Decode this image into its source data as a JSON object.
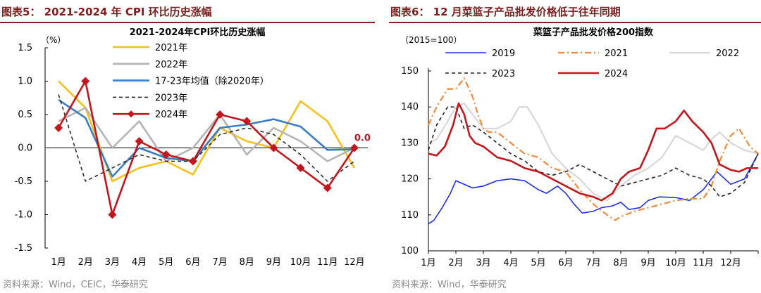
{
  "left": {
    "figure_title": "图表5：  2021-2024 年 CPI 环比历史涨幅",
    "source": "资料来源：Wind，CEIC，华泰研究"
  },
  "right": {
    "figure_title": "图表6：  12 月菜篮子产品批发价格低于往年同期",
    "source": "资料来源：Wind，华泰研究"
  },
  "chart_data": [
    {
      "type": "line",
      "title": "2021-2024年CPI环比历史涨幅",
      "unit_label": "（%）",
      "xlabel": "",
      "ylabel": "",
      "ylim": [
        -1.5,
        1.5
      ],
      "yticks": [
        "1.5",
        "1.0",
        "0.5",
        "0.0",
        "-0.5",
        "-1.0",
        "-1.5"
      ],
      "categories": [
        "1月",
        "2月",
        "3月",
        "4月",
        "5月",
        "6月",
        "7月",
        "8月",
        "9月",
        "10月",
        "11月",
        "12月"
      ],
      "grid": false,
      "legend_position": "top-center",
      "series": [
        {
          "name": "2021年",
          "color": "#f5c018",
          "style": "solid",
          "values": [
            1.0,
            0.6,
            -0.5,
            -0.3,
            -0.2,
            -0.4,
            0.3,
            0.1,
            0.0,
            0.7,
            0.4,
            -0.3
          ]
        },
        {
          "name": "2022年",
          "color": "#b4b4b4",
          "style": "solid",
          "values": [
            0.4,
            0.6,
            0.0,
            0.4,
            -0.2,
            0.0,
            0.5,
            -0.1,
            0.3,
            0.1,
            -0.2,
            0.0
          ]
        },
        {
          "name": "17-23年均值（除2020年）",
          "color": "#3a7ebf",
          "style": "solid",
          "values": [
            0.72,
            0.45,
            -0.43,
            0.0,
            -0.15,
            -0.2,
            0.3,
            0.35,
            0.43,
            0.32,
            -0.03,
            -0.02
          ]
        },
        {
          "name": "2023年",
          "color": "#222222",
          "style": "dashed",
          "values": [
            0.8,
            -0.5,
            -0.3,
            -0.1,
            -0.2,
            -0.2,
            0.2,
            0.3,
            0.2,
            -0.1,
            -0.5,
            -0.2
          ]
        },
        {
          "name": "2024年",
          "color": "#c0161d",
          "style": "solid-diamond",
          "values": [
            0.3,
            1.0,
            -1.0,
            0.1,
            -0.1,
            -0.2,
            0.5,
            0.4,
            0.0,
            -0.3,
            -0.6,
            0.0
          ]
        }
      ],
      "annotations": [
        {
          "text": "0.0",
          "category": "12月",
          "value": 0.0,
          "color": "#c0161d"
        }
      ]
    },
    {
      "type": "line",
      "title": "菜篮子产品批发价格200指数",
      "unit_label": "（2015=100）",
      "xlabel": "",
      "ylabel": "",
      "ylim": [
        100,
        150
      ],
      "yticks": [
        "150",
        "140",
        "130",
        "120",
        "110",
        "100"
      ],
      "categories": [
        "1月",
        "2月",
        "3月",
        "4月",
        "5月",
        "6月",
        "7月",
        "8月",
        "9月",
        "10月",
        "11月",
        "12月"
      ],
      "grid": false,
      "legend_position": "top",
      "series": [
        {
          "name": "2019",
          "color": "#1f2fe0",
          "style": "solid",
          "x": [
            0,
            0.2,
            0.5,
            0.8,
            1.0,
            1.3,
            1.6,
            2.0,
            2.5,
            3.0,
            3.5,
            4.0,
            4.3,
            4.7,
            5.0,
            5.3,
            5.6,
            6.0,
            6.3,
            6.7,
            7.0,
            7.3,
            7.7,
            8.0,
            8.4,
            9.0,
            9.5,
            10.0,
            10.5,
            11.0,
            11.5,
            12.0
          ],
          "y": [
            107.5,
            108.5,
            112,
            116,
            119.5,
            118.5,
            117.5,
            118,
            119.5,
            120,
            119.5,
            117,
            116,
            118,
            116,
            113,
            110.5,
            111,
            112,
            112.5,
            113.5,
            111.5,
            112,
            114,
            115,
            114.8,
            114,
            117,
            122,
            118.5,
            120,
            127
          ]
        },
        {
          "name": "2021",
          "color": "#f28a3c",
          "style": "dashdot",
          "x": [
            0,
            0.3,
            0.7,
            1.0,
            1.3,
            1.6,
            1.8,
            2.0,
            2.2,
            2.5,
            3.0,
            3.5,
            4.0,
            4.5,
            5.0,
            5.5,
            6.0,
            6.5,
            6.8,
            7.0,
            7.5,
            8.0,
            8.5,
            9.0,
            9.5,
            10.0,
            10.3,
            10.6,
            11.0,
            11.3,
            11.7,
            12.0
          ],
          "y": [
            135,
            140,
            145,
            145,
            148,
            143,
            138,
            134,
            133,
            133,
            130,
            127,
            126,
            123,
            122,
            117,
            113,
            110,
            108.5,
            109.5,
            111,
            112,
            113,
            114,
            114.5,
            114.5,
            118,
            125,
            132,
            134,
            129,
            127
          ]
        },
        {
          "name": "2022",
          "color": "#d8d8d8",
          "style": "solid",
          "x": [
            0,
            0.3,
            0.7,
            1.0,
            1.3,
            1.6,
            2.0,
            2.5,
            3.0,
            3.3,
            3.6,
            4.0,
            4.5,
            5.0,
            5.5,
            6.0,
            6.5,
            7.0,
            7.5,
            8.0,
            8.5,
            9.0,
            9.5,
            10.0,
            10.3,
            10.6,
            11.0,
            11.5,
            12.0
          ],
          "y": [
            130,
            131,
            136,
            140,
            141,
            138,
            134,
            134,
            136,
            140,
            140,
            135,
            127,
            123,
            120,
            116,
            114,
            118,
            121,
            123,
            126,
            132,
            130,
            128,
            131,
            133,
            130,
            128,
            127
          ]
        },
        {
          "name": "2023",
          "color": "#222222",
          "style": "dashed",
          "x": [
            0,
            0.3,
            0.7,
            1.0,
            1.3,
            1.6,
            2.0,
            2.5,
            3.0,
            3.5,
            4.0,
            4.5,
            5.0,
            5.5,
            6.0,
            6.5,
            7.0,
            7.5,
            8.0,
            8.5,
            9.0,
            9.5,
            10.0,
            10.3,
            10.6,
            11.0,
            11.5,
            12.0
          ],
          "y": [
            128,
            135,
            140,
            140,
            134,
            135,
            133,
            130,
            127,
            125,
            122,
            121,
            122,
            124,
            122,
            120,
            118,
            119,
            120,
            121,
            123,
            121,
            120,
            118,
            115,
            116,
            119,
            127
          ]
        },
        {
          "name": "2024",
          "color": "#c0161d",
          "style": "solid-thick",
          "x": [
            0,
            0.3,
            0.6,
            0.9,
            1.1,
            1.3,
            1.5,
            1.7,
            2.0,
            2.5,
            3.0,
            3.5,
            4.0,
            4.5,
            5.0,
            5.5,
            6.0,
            6.3,
            6.7,
            7.0,
            7.3,
            7.7,
            8.0,
            8.3,
            8.6,
            9.0,
            9.3,
            9.6,
            10.0,
            10.3,
            10.6,
            11.0,
            11.3,
            11.6,
            12.0
          ],
          "y": [
            127,
            126.5,
            129,
            135,
            141,
            138,
            132,
            130,
            129,
            126,
            125,
            123,
            122,
            120,
            118,
            116,
            115,
            114,
            116,
            120,
            122,
            123,
            128,
            134,
            134,
            136,
            139,
            136,
            133,
            130,
            124,
            122.5,
            122,
            123,
            123
          ]
        }
      ]
    }
  ]
}
